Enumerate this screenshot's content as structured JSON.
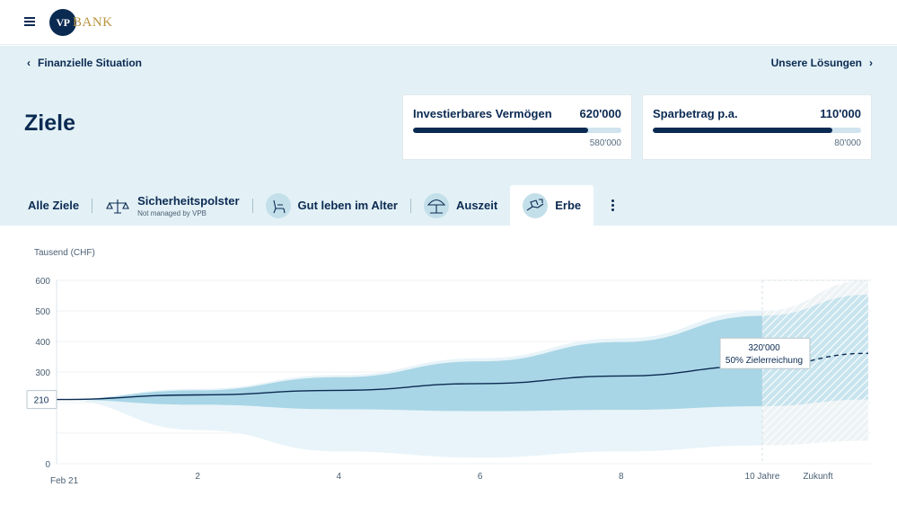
{
  "header": {
    "menu_icon": "hamburger-icon",
    "logo_mark": "VP",
    "logo_word": "BANK"
  },
  "nav": {
    "back_label": "Finanzielle Situation",
    "forward_label": "Unsere Lösungen"
  },
  "page": {
    "title": "Ziele"
  },
  "cards": [
    {
      "label": "Investierbares Vermögen",
      "value": "620'000",
      "sub": "580'000",
      "progress": 0.84
    },
    {
      "label": "Sparbetrag p.a.",
      "value": "110'000",
      "sub": "80'000",
      "progress": 0.86
    }
  ],
  "tabs": [
    {
      "label": "Alle Ziele",
      "icon": null
    },
    {
      "label": "Sicherheitspolster",
      "sub": "Not managed by VPB",
      "icon": "safety-scale-icon"
    },
    {
      "label": "Gut leben im Alter",
      "icon": "armchair-icon"
    },
    {
      "label": "Auszeit",
      "icon": "beach-umbrella-icon"
    },
    {
      "label": "Erbe",
      "icon": "inheritance-hand-icon",
      "active": true
    }
  ],
  "colors": {
    "navy": "#0b2a52",
    "hero_bg": "#e3f1f6",
    "band": "#a9d6e6",
    "band_outer": "#e6f3f8"
  },
  "chart_data": {
    "type": "area",
    "ylabel": "Tausend (CHF)",
    "y_ticks": [
      0,
      100,
      200,
      300,
      400,
      500,
      600
    ],
    "y_tick_labels": [
      "0",
      "",
      "",
      "300",
      "400",
      "500",
      "600"
    ],
    "ylim": [
      0,
      600
    ],
    "x_ticks": [
      0,
      2,
      4,
      6,
      8,
      10,
      11
    ],
    "x_tick_labels": [
      "Feb 21",
      "2",
      "4",
      "6",
      "8",
      "10 Jahre",
      "Zukunft"
    ],
    "start_value_label": "210",
    "median": [
      [
        0,
        210
      ],
      [
        2,
        225
      ],
      [
        4,
        240
      ],
      [
        6,
        262
      ],
      [
        8,
        287
      ],
      [
        10,
        320
      ],
      [
        11.5,
        361
      ]
    ],
    "upper": [
      [
        0,
        210
      ],
      [
        2,
        240
      ],
      [
        4,
        283
      ],
      [
        6,
        335
      ],
      [
        8,
        398
      ],
      [
        10,
        484
      ],
      [
        11.5,
        553
      ]
    ],
    "lower": [
      [
        0,
        210
      ],
      [
        2,
        193
      ],
      [
        4,
        178
      ],
      [
        6,
        172
      ],
      [
        8,
        176
      ],
      [
        10,
        188
      ],
      [
        11.5,
        210
      ]
    ],
    "outer_upper": [
      [
        0,
        210
      ],
      [
        2,
        245
      ],
      [
        4,
        290
      ],
      [
        6,
        345
      ],
      [
        8,
        410
      ],
      [
        10,
        500
      ],
      [
        11.5,
        600
      ]
    ],
    "outer_lower": [
      [
        0,
        210
      ],
      [
        2,
        110
      ],
      [
        4,
        40
      ],
      [
        6,
        20
      ],
      [
        8,
        40
      ],
      [
        10,
        60
      ],
      [
        11.5,
        75
      ]
    ],
    "projection_start": 10,
    "tooltip": {
      "value": "320'000",
      "text": "50% Zielerreichung",
      "x": 10
    },
    "grid": true
  }
}
